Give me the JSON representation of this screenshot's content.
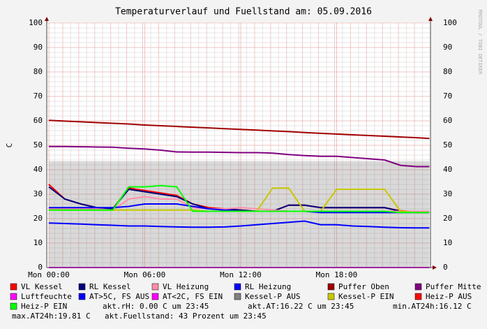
{
  "chart_data": {
    "type": "line",
    "title": "Temperaturverlauf und Fuellstand am: 05.09.2016",
    "y_label": "C",
    "side_note": "RRDTOOL / TOBI OETIKER",
    "x": [
      0,
      1,
      2,
      3,
      4,
      5,
      6,
      7,
      8,
      9,
      10,
      11,
      12,
      13,
      14,
      15,
      16,
      17,
      18,
      19,
      20,
      21,
      22,
      23,
      23.8
    ],
    "xlim": [
      -0.13,
      23.87
    ],
    "xticks": [
      {
        "value": 0,
        "label": "Mon 00:00"
      },
      {
        "value": 6,
        "label": "Mon 06:00"
      },
      {
        "value": 12,
        "label": "Mon 12:00"
      },
      {
        "value": 18,
        "label": "Mon 18:00"
      }
    ],
    "ylim": [
      0,
      100
    ],
    "yticks": [
      0,
      10,
      20,
      30,
      40,
      50,
      60,
      70,
      80,
      90,
      100
    ],
    "grid": true,
    "series": [
      {
        "name": "Kessel-P AUS",
        "color": "#808080",
        "kind": "area",
        "values": [
          43.5,
          43.5,
          43.5,
          43.5,
          43.5,
          43.5,
          43.5,
          43.5,
          43.5,
          43.5,
          43.5,
          43.5,
          43.5,
          43.5,
          43.5,
          43.5,
          43.5,
          43.5,
          43.5,
          43.5,
          43.5,
          43.5,
          43.5,
          43.5,
          43.5
        ]
      },
      {
        "name": "VL Kessel",
        "color": "#ff0000",
        "values": [
          34,
          28,
          26,
          24.5,
          24,
          32.5,
          31.5,
          30.5,
          29.5,
          26,
          24.5,
          24,
          23.5,
          23,
          23,
          25.5,
          25.5,
          24.5,
          24.5,
          24.5,
          24.5,
          24.5,
          23.2,
          22.8,
          22.8
        ]
      },
      {
        "name": "RL Kessel",
        "color": "#000080",
        "values": [
          33,
          28,
          26,
          24.5,
          24,
          32,
          31,
          30,
          29,
          26,
          24,
          24,
          23.5,
          23,
          23,
          25.5,
          25.5,
          24.5,
          24.5,
          24.5,
          24.5,
          24.5,
          23,
          22.5,
          22.5
        ]
      },
      {
        "name": "VL Heizung",
        "color": "#ff8fab",
        "values": [
          24,
          24,
          24,
          24,
          23.5,
          28,
          29,
          28,
          28,
          24.5,
          24,
          24,
          24.5,
          24,
          23.5,
          23,
          23,
          23,
          23,
          23,
          23,
          23,
          23,
          23,
          23
        ]
      },
      {
        "name": "RL Heizung",
        "color": "#0000ff",
        "values": [
          24.5,
          24.5,
          24.5,
          24.5,
          24.5,
          25,
          26,
          26,
          26,
          25,
          24,
          23.5,
          23,
          23,
          23,
          23,
          23,
          22.5,
          22.5,
          22.5,
          22.5,
          22.5,
          22.5,
          22.5,
          22.5
        ]
      },
      {
        "name": "Puffer Oben",
        "color": "#a00000",
        "values": [
          60.2,
          59.9,
          59.6,
          59.3,
          59,
          58.7,
          58.3,
          58,
          57.7,
          57.4,
          57.1,
          56.8,
          56.5,
          56.2,
          55.9,
          55.6,
          55.2,
          54.9,
          54.6,
          54.3,
          54,
          53.7,
          53.4,
          53.1,
          52.8
        ]
      },
      {
        "name": "Puffer Mitte",
        "color": "#800080",
        "values": [
          49.5,
          49.5,
          49.4,
          49.3,
          49.2,
          48.8,
          48.5,
          48,
          47.3,
          47.2,
          47.2,
          47.1,
          47,
          47,
          46.8,
          46.2,
          45.8,
          45.5,
          45.5,
          45,
          44.5,
          44,
          41.8,
          41.3,
          41.3
        ]
      },
      {
        "name": "Luftfeuchte",
        "color": "#ff00ff",
        "values": [
          0,
          0,
          0,
          0,
          0,
          0,
          0,
          0,
          0,
          0,
          0,
          0,
          0,
          0,
          0,
          0,
          0,
          0,
          0,
          0,
          0,
          0,
          0,
          0,
          0
        ]
      },
      {
        "name": "AT>5C, FS AUS",
        "color": "#0000ff",
        "values": [
          18.2,
          18,
          17.8,
          17.5,
          17.3,
          17,
          17,
          16.8,
          16.6,
          16.5,
          16.5,
          16.6,
          17,
          17.5,
          18,
          18.5,
          19,
          17.5,
          17.5,
          17,
          16.8,
          16.5,
          16.3,
          16.2,
          16.2
        ]
      },
      {
        "name": "AT<2C, FS EIN",
        "color": "#ff00ff"
      },
      {
        "name": "Kessel-P EIN",
        "color": "#c8c800",
        "values": [
          23.5,
          23.5,
          23.5,
          23.5,
          23.5,
          23.5,
          23.5,
          23.5,
          23.5,
          23.5,
          23,
          23,
          23,
          23,
          32.5,
          32.5,
          23,
          23,
          32,
          32,
          32,
          32,
          23,
          22.5,
          22.5
        ]
      },
      {
        "name": "Heiz-P AUS",
        "color": "#ff0000"
      },
      {
        "name": "Heiz-P EIN",
        "color": "#00ff00",
        "values": [
          23.5,
          23.5,
          23.5,
          23.5,
          23.5,
          33,
          33,
          33.5,
          33,
          23,
          23,
          23,
          23,
          23,
          23,
          23,
          23,
          23,
          23,
          23,
          23,
          23,
          22.5,
          22.5,
          22.5
        ]
      }
    ],
    "legend_order": [
      "VL Kessel",
      "RL Kessel",
      "VL Heizung",
      "RL Heizung",
      "Puffer Oben",
      "Puffer Mitte",
      "Luftfeuchte",
      "AT>5C, FS AUS",
      "AT<2C, FS EIN",
      "Kessel-P AUS",
      "Kessel-P EIN",
      "Heiz-P AUS",
      "Heiz-P EIN"
    ],
    "footer": [
      "akt.rH: 0.00 C um 23:45",
      "akt.AT:16.22 C um 23:45",
      "min.AT24h:16.12 C",
      "max.AT24h:19.81 C",
      "akt.Fuellstand:   43 Prozent um 23:45"
    ]
  }
}
